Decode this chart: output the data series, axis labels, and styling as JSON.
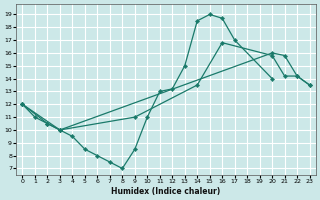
{
  "background_color": "#cce8e8",
  "grid_color": "#ffffff",
  "line_color": "#1a7a6a",
  "xlim": [
    -0.5,
    23.5
  ],
  "ylim": [
    6.5,
    19.8
  ],
  "yticks": [
    7,
    8,
    9,
    10,
    11,
    12,
    13,
    14,
    15,
    16,
    17,
    18,
    19
  ],
  "xticks": [
    0,
    1,
    2,
    3,
    4,
    5,
    6,
    7,
    8,
    9,
    10,
    11,
    12,
    13,
    14,
    15,
    16,
    17,
    18,
    19,
    20,
    21,
    22,
    23
  ],
  "xlabel": "Humidex (Indice chaleur)",
  "line1_x": [
    0,
    1,
    2,
    3,
    4,
    5,
    6,
    7,
    8,
    9,
    10,
    11,
    12,
    13,
    14,
    15,
    16,
    17,
    20
  ],
  "line1_y": [
    12,
    11,
    10.5,
    10,
    9.5,
    8.5,
    8.0,
    7.5,
    7.0,
    8.5,
    11.0,
    13.0,
    13.2,
    15.0,
    18.5,
    19.0,
    18.7,
    17.0,
    14.0
  ],
  "line2_x": [
    0,
    2,
    3,
    20,
    21,
    22,
    23
  ],
  "line2_y": [
    12,
    10.5,
    10,
    16.0,
    15.8,
    14.2,
    13.5
  ],
  "line3_x": [
    0,
    3,
    9,
    14,
    16,
    20,
    21,
    22,
    23
  ],
  "line3_y": [
    12,
    10,
    11.0,
    13.5,
    16.8,
    15.8,
    14.2,
    14.2,
    13.5
  ]
}
